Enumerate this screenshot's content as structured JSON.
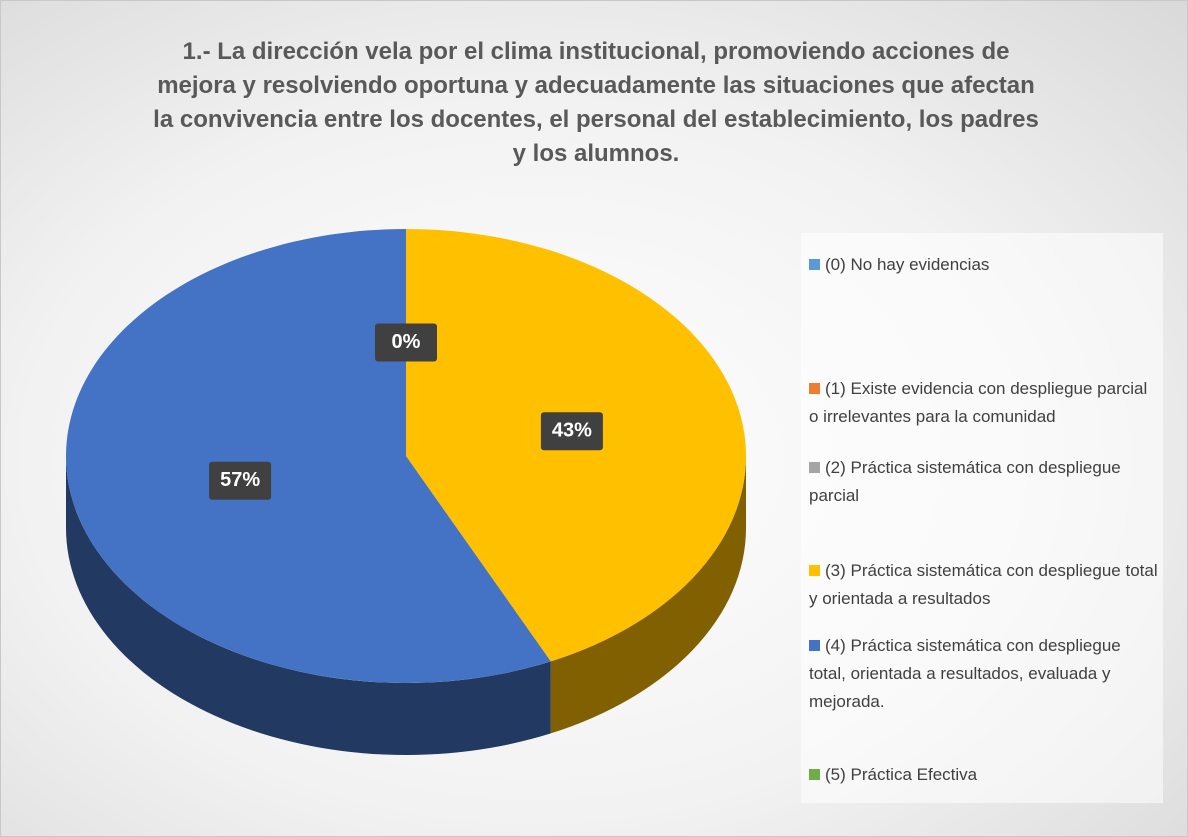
{
  "chart_data": {
    "type": "pie",
    "title": "1.- La dirección vela por el clima institucional, promoviendo acciones de mejora y resolviendo oportuna y adecuadamente las situaciones que afectan la convivencia entre los docentes, el personal del establecimiento, los padres y los alumnos.",
    "categories": [
      "(0) No hay evidencias",
      "(1) Existe evidencia con despliegue parcial o irrelevantes para la comunidad",
      "(2) Práctica sistemática con despliegue parcial",
      "(3) Práctica sistemática con despliegue total y orientada a resultados",
      "(4) Práctica sistemática con despliegue total, orientada a resultados, evaluada y mejorada.",
      "(5) Práctica Efectiva"
    ],
    "values": [
      0,
      0,
      0,
      43,
      57,
      0
    ],
    "value_labels": [
      "0%",
      null,
      null,
      "43%",
      "57%",
      null
    ],
    "colors": [
      "#5b9bd5",
      "#ed7d31",
      "#a5a5a5",
      "#ffc000",
      "#4472c4",
      "#70ad47"
    ],
    "legend": "right"
  }
}
